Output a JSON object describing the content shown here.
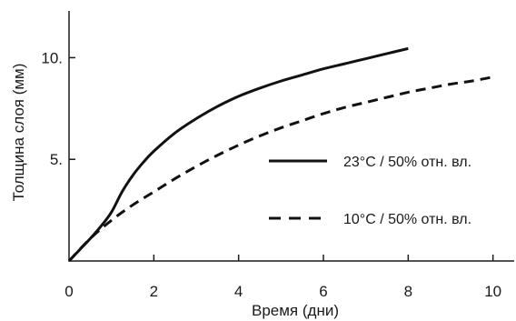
{
  "chart_data": {
    "type": "line",
    "title": "",
    "xlabel": "Время (дни)",
    "ylabel": "Толщина слоя (мм)",
    "xlim": [
      0,
      10.5
    ],
    "ylim": [
      0,
      12.3
    ],
    "xticks": [
      0,
      2,
      4,
      6,
      8,
      10
    ],
    "yticks": [
      5,
      10
    ],
    "grid": false,
    "legend_position": "right",
    "series": [
      {
        "name": "23°C / 50% отн. вл.",
        "style": "solid",
        "color": "#111111",
        "x": [
          0,
          0.25,
          0.5,
          0.75,
          1.0,
          1.25,
          1.5,
          1.75,
          2.0,
          2.5,
          3.0,
          3.5,
          4.0,
          4.5,
          5.0,
          5.5,
          6.0,
          6.5,
          7.0,
          7.5,
          8.0
        ],
        "y": [
          0,
          0.55,
          1.1,
          1.7,
          2.4,
          3.4,
          4.2,
          4.85,
          5.4,
          6.3,
          7.0,
          7.6,
          8.1,
          8.5,
          8.85,
          9.15,
          9.45,
          9.7,
          9.95,
          10.2,
          10.45
        ]
      },
      {
        "name": "10°C / 50% отн. вл.",
        "style": "dashed",
        "color": "#111111",
        "x": [
          0,
          0.5,
          1.0,
          1.5,
          2.0,
          2.5,
          3.0,
          3.5,
          4.0,
          4.5,
          5.0,
          5.5,
          6.0,
          6.5,
          7.0,
          7.5,
          8.0,
          8.5,
          9.0,
          9.5,
          10.0
        ],
        "y": [
          0,
          1.1,
          2.0,
          2.75,
          3.4,
          4.05,
          4.65,
          5.2,
          5.7,
          6.15,
          6.55,
          6.9,
          7.25,
          7.55,
          7.8,
          8.05,
          8.3,
          8.5,
          8.7,
          8.85,
          9.05
        ]
      }
    ]
  }
}
